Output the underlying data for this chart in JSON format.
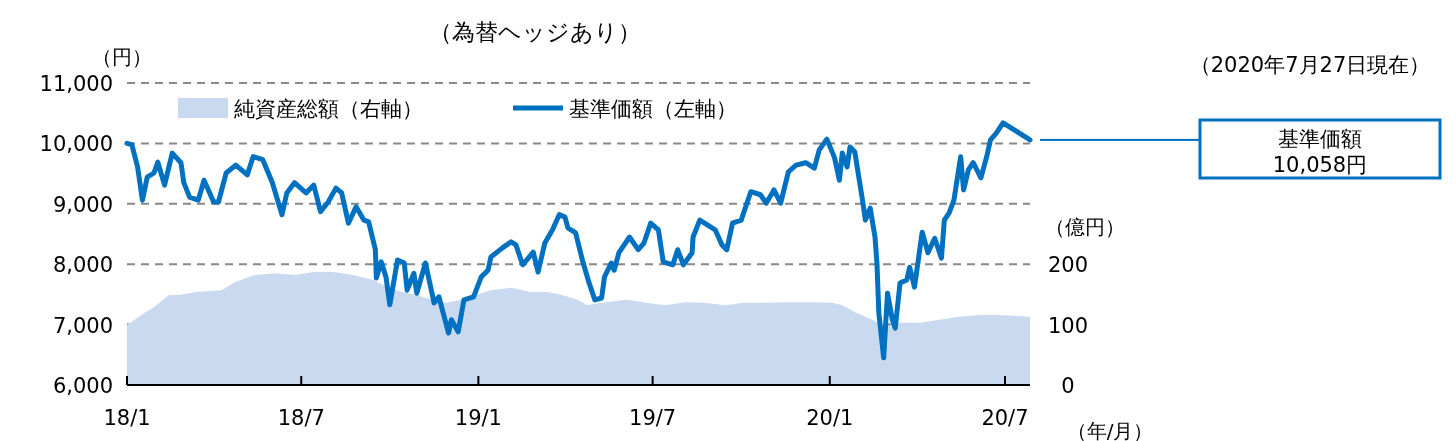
{
  "chart_data": {
    "type": "line",
    "title": "（為替ヘッジあり）",
    "ylabel": "（円）",
    "y2label": "（億円）",
    "xlabel": "（年/月）",
    "xlim": [
      "2018-01-01",
      "2020-07-27"
    ],
    "xticks": [
      {
        "value": "2018-01-01",
        "label": "18/1"
      },
      {
        "value": "2018-07-01",
        "label": "18/7"
      },
      {
        "value": "2019-01-01",
        "label": "19/1"
      },
      {
        "value": "2019-07-01",
        "label": "19/7"
      },
      {
        "value": "2020-01-01",
        "label": "20/1"
      },
      {
        "value": "2020-07-01",
        "label": "20/7"
      }
    ],
    "ylim": [
      6000,
      11000
    ],
    "yticks": [
      {
        "value": 6000,
        "label": "6,000"
      },
      {
        "value": 7000,
        "label": "7,000"
      },
      {
        "value": 8000,
        "label": "8,000"
      },
      {
        "value": 9000,
        "label": "9,000"
      },
      {
        "value": 10000,
        "label": "10,000"
      },
      {
        "value": 11000,
        "label": "11,000"
      }
    ],
    "y2lim": [
      0,
      500
    ],
    "y2ticks": [
      0,
      100,
      200
    ],
    "grid": "y",
    "legend": "top",
    "line_style": "solid",
    "marker": "none",
    "series": [
      {
        "name": "純資産総額（右軸）",
        "type": "area",
        "axis": "y2",
        "color": "#c9d9f0",
        "x": [
          "2018-01-01",
          "2018-01-14",
          "2018-01-29",
          "2018-02-14",
          "2018-02-24",
          "2018-03-14",
          "2018-04-09",
          "2018-04-24",
          "2018-05-14",
          "2018-06-04",
          "2018-06-24",
          "2018-07-14",
          "2018-08-04",
          "2018-08-24",
          "2018-09-14",
          "2018-09-29",
          "2018-10-14",
          "2018-10-29",
          "2018-11-14",
          "2018-11-29",
          "2018-12-14",
          "2019-01-04",
          "2019-01-14",
          "2019-02-04",
          "2019-02-24",
          "2019-03-14",
          "2019-03-29",
          "2019-04-14",
          "2019-04-24",
          "2019-05-09",
          "2019-06-04",
          "2019-06-24",
          "2019-07-14",
          "2019-08-04",
          "2019-08-24",
          "2019-09-14",
          "2019-10-04",
          "2019-10-24",
          "2019-11-14",
          "2019-12-14",
          "2020-01-04",
          "2020-01-14",
          "2020-01-29",
          "2020-02-14",
          "2020-02-28",
          "2020-03-14",
          "2020-04-04",
          "2020-04-24",
          "2020-05-14",
          "2020-06-04",
          "2020-06-24",
          "2020-07-27"
        ],
        "values": [
          99,
          114,
          129,
          149,
          149,
          154,
          157,
          171,
          182,
          185,
          182,
          187,
          187,
          182,
          174,
          162,
          154,
          149,
          141,
          136,
          141,
          152,
          157,
          161,
          154,
          154,
          149,
          141,
          132,
          136,
          141,
          136,
          132,
          137,
          136,
          132,
          136,
          136,
          137,
          137,
          136,
          132,
          119,
          108,
          96,
          103,
          103,
          108,
          113,
          116,
          116,
          113
        ]
      },
      {
        "name": "基準価額（左軸）",
        "axis": "y",
        "color": "#0070c0",
        "x": [
          "2018-01-01",
          "2018-01-06",
          "2018-01-12",
          "2018-01-17",
          "2018-01-22",
          "2018-01-29",
          "2018-02-02",
          "2018-02-09",
          "2018-02-17",
          "2018-02-26",
          "2018-03-01",
          "2018-03-07",
          "2018-03-16",
          "2018-03-22",
          "2018-04-01",
          "2018-04-06",
          "2018-04-14",
          "2018-04-24",
          "2018-05-06",
          "2018-05-12",
          "2018-05-22",
          "2018-06-01",
          "2018-06-11",
          "2018-06-16",
          "2018-06-24",
          "2018-07-06",
          "2018-07-14",
          "2018-07-21",
          "2018-07-29",
          "2018-08-06",
          "2018-08-12",
          "2018-08-19",
          "2018-08-27",
          "2018-09-04",
          "2018-09-09",
          "2018-09-16",
          "2018-09-17",
          "2018-09-22",
          "2018-09-27",
          "2018-10-01",
          "2018-10-09",
          "2018-10-16",
          "2018-10-19",
          "2018-10-26",
          "2018-10-29",
          "2018-11-07",
          "2018-11-16",
          "2018-11-21",
          "2018-12-01",
          "2018-12-04",
          "2018-12-11",
          "2018-12-17",
          "2018-12-27",
          "2019-01-04",
          "2019-01-11",
          "2019-01-14",
          "2019-01-26",
          "2019-02-04",
          "2019-02-09",
          "2019-02-16",
          "2019-02-27",
          "2019-03-04",
          "2019-03-11",
          "2019-03-19",
          "2019-03-26",
          "2019-04-01",
          "2019-04-04",
          "2019-04-12",
          "2019-04-19",
          "2019-04-26",
          "2019-05-02",
          "2019-05-09",
          "2019-05-12",
          "2019-05-19",
          "2019-05-22",
          "2019-05-27",
          "2019-06-07",
          "2019-06-16",
          "2019-06-22",
          "2019-06-29",
          "2019-07-07",
          "2019-07-12",
          "2019-07-22",
          "2019-07-27",
          "2019-08-02",
          "2019-08-11",
          "2019-08-12",
          "2019-08-19",
          "2019-09-04",
          "2019-09-11",
          "2019-09-16",
          "2019-09-22",
          "2019-10-01",
          "2019-10-11",
          "2019-10-21",
          "2019-10-27",
          "2019-11-04",
          "2019-11-11",
          "2019-11-19",
          "2019-11-27",
          "2019-12-07",
          "2019-12-16",
          "2019-12-21",
          "2019-12-29",
          "2020-01-06",
          "2020-01-11",
          "2020-01-14",
          "2020-01-19",
          "2020-01-22",
          "2020-01-27",
          "2020-02-04",
          "2020-02-07",
          "2020-02-12",
          "2020-02-17",
          "2020-02-19",
          "2020-02-21",
          "2020-02-26",
          "2020-03-01",
          "2020-03-06",
          "2020-03-09",
          "2020-03-14",
          "2020-03-21",
          "2020-03-24",
          "2020-03-29",
          "2020-04-06",
          "2020-04-12",
          "2020-04-19",
          "2020-04-26",
          "2020-04-29",
          "2020-05-04",
          "2020-05-09",
          "2020-05-16",
          "2020-05-19",
          "2020-05-24",
          "2020-05-29",
          "2020-06-06",
          "2020-06-12",
          "2020-06-16",
          "2020-06-22",
          "2020-06-29",
          "2020-07-27"
        ],
        "values": [
          10000,
          9980,
          9610,
          9060,
          9440,
          9510,
          9690,
          9310,
          9840,
          9680,
          9350,
          9110,
          9060,
          9390,
          9030,
          9030,
          9510,
          9640,
          9480,
          9780,
          9730,
          9350,
          8820,
          9180,
          9350,
          9180,
          9310,
          8870,
          9030,
          9260,
          9180,
          8680,
          8950,
          8730,
          8700,
          8240,
          7770,
          8040,
          7790,
          7330,
          8070,
          8020,
          7570,
          7850,
          7520,
          8020,
          7360,
          7460,
          6860,
          7080,
          6880,
          7410,
          7460,
          7790,
          7900,
          8120,
          8270,
          8370,
          8320,
          7990,
          8200,
          7870,
          8350,
          8570,
          8820,
          8780,
          8600,
          8520,
          8070,
          7690,
          7410,
          7440,
          7790,
          8020,
          7900,
          8190,
          8450,
          8240,
          8350,
          8680,
          8570,
          8040,
          7990,
          8240,
          7990,
          8190,
          8450,
          8730,
          8570,
          8320,
          8240,
          8680,
          8730,
          9200,
          9150,
          9010,
          9230,
          9010,
          9530,
          9640,
          9680,
          9590,
          9890,
          10070,
          9760,
          9390,
          9840,
          9610,
          9940,
          9860,
          9060,
          8730,
          8930,
          8450,
          8020,
          7190,
          6450,
          7520,
          7080,
          6940,
          7690,
          7740,
          7950,
          7620,
          8530,
          8190,
          8430,
          8100,
          8730,
          8850,
          9060,
          9780,
          9230,
          9560,
          9680,
          9430,
          9780,
          10060,
          10170,
          10340,
          10058
        ]
      }
    ],
    "annotations": [
      "（2020年7月27日現在）",
      "基準価額\n10,058円"
    ]
  }
}
